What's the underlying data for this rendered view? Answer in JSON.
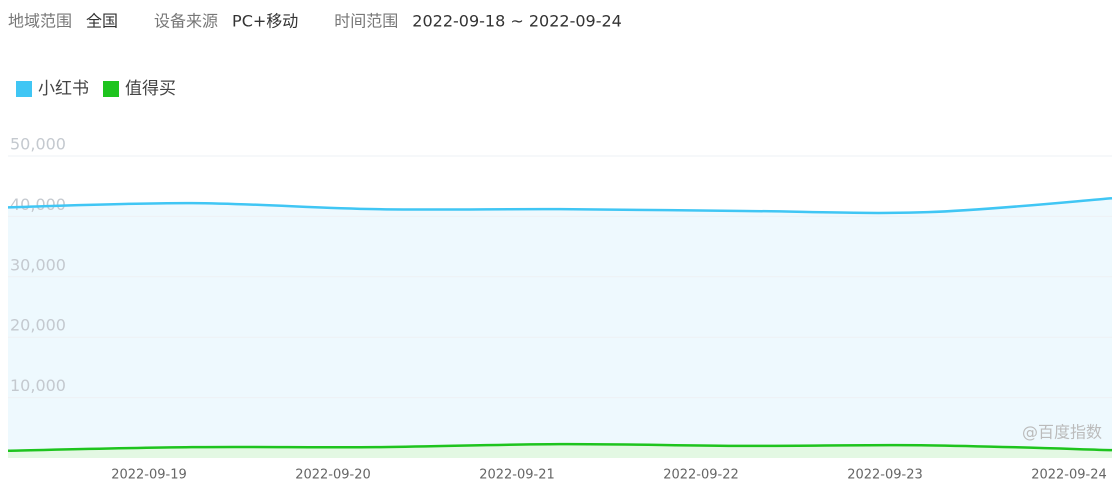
{
  "filters": [
    {
      "label": "地域范围",
      "value": "全国"
    },
    {
      "label": "设备来源",
      "value": "PC+移动"
    },
    {
      "label": "时间范围",
      "value": "2022-09-18 ~ 2022-09-24"
    }
  ],
  "chart_data": {
    "type": "line",
    "categories": [
      null,
      "2022-09-19",
      "2022-09-20",
      "2022-09-21",
      "2022-09-22",
      "2022-09-23",
      "2022-09-24"
    ],
    "series": [
      {
        "name": "小红书",
        "color": "#40c6f4",
        "values": [
          41500,
          42200,
          41200,
          41200,
          40900,
          40700,
          43000
        ]
      },
      {
        "name": "值得买",
        "color": "#1ec41e",
        "values": [
          1200,
          1800,
          1800,
          2300,
          2000,
          2100,
          1300
        ]
      }
    ],
    "ylim": [
      0,
      50000
    ],
    "yticks": [
      {
        "value": 10000,
        "label": "10,000"
      },
      {
        "value": 20000,
        "label": "20,000"
      },
      {
        "value": 30000,
        "label": "30,000"
      },
      {
        "value": 40000,
        "label": "40,000"
      },
      {
        "value": 50000,
        "label": "50,000"
      }
    ],
    "grid": true,
    "area": true,
    "legend": "top-left",
    "watermark": "@百度指数"
  }
}
